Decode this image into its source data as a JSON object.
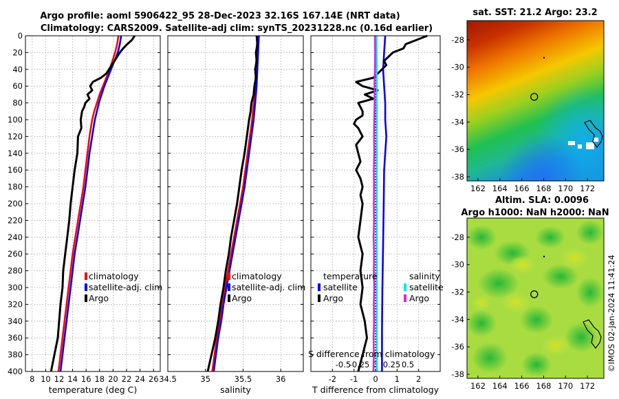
{
  "header": {
    "title_line1": "Argo profile: aoml 5906422_95 28-Dec-2023 32.16S 167.14E (NRT data)",
    "title_line2": "Climatology: CARS2009. Satellite-adj clim: synTS_20231228.nc (0.16d earlier)"
  },
  "colors": {
    "climatology": "#ff0000",
    "satellite": "#0000ff",
    "argo": "#000000",
    "s_satellite": "#00e5ee",
    "s_argo": "#e020e0"
  },
  "watermark": "©IMOS 02-Jan-2024 11:41:24",
  "chart_data": [
    {
      "type": "line",
      "name": "temperature",
      "xlabel": "temperature (deg C)",
      "ylabel": "",
      "xlim": [
        7,
        27
      ],
      "ylim": [
        0,
        400
      ],
      "xticks": [
        8,
        10,
        12,
        14,
        16,
        18,
        20,
        22,
        24,
        26
      ],
      "yticks": [
        0,
        20,
        40,
        60,
        80,
        100,
        120,
        140,
        160,
        180,
        200,
        220,
        240,
        260,
        280,
        300,
        320,
        340,
        360,
        380,
        400
      ],
      "legend": [
        "climatology",
        "satellite-adj. clim",
        "Argo"
      ],
      "series": [
        {
          "name": "climatology",
          "color": "#ff0000",
          "depth": [
            0,
            10,
            20,
            30,
            40,
            50,
            60,
            70,
            80,
            90,
            100,
            120,
            140,
            160,
            180,
            200,
            220,
            240,
            260,
            280,
            300,
            320,
            340,
            360,
            380,
            400
          ],
          "values": [
            20.8,
            20.6,
            20.3,
            19.9,
            19.5,
            19.0,
            18.5,
            18.0,
            17.6,
            17.2,
            16.9,
            16.5,
            16.2,
            15.9,
            15.6,
            15.2,
            14.8,
            14.4,
            14.0,
            13.7,
            13.4,
            13.1,
            12.8,
            12.5,
            12.2,
            11.9
          ]
        },
        {
          "name": "satellite-adj. clim",
          "color": "#0000ff",
          "depth": [
            0,
            10,
            20,
            30,
            40,
            50,
            60,
            70,
            80,
            90,
            100,
            120,
            140,
            160,
            180,
            200,
            220,
            240,
            260,
            280,
            300,
            320,
            340,
            360,
            380,
            400
          ],
          "values": [
            21.2,
            21.0,
            20.7,
            20.2,
            19.7,
            19.2,
            18.7,
            18.3,
            17.9,
            17.6,
            17.3,
            16.9,
            16.5,
            16.2,
            15.9,
            15.5,
            15.1,
            14.7,
            14.3,
            14.0,
            13.7,
            13.4,
            13.1,
            12.8,
            12.5,
            12.2
          ]
        },
        {
          "name": "Argo",
          "color": "#000000",
          "depth": [
            0,
            5,
            10,
            15,
            20,
            25,
            30,
            35,
            40,
            45,
            50,
            55,
            60,
            65,
            70,
            75,
            80,
            85,
            90,
            100,
            110,
            120,
            140,
            160,
            180,
            200,
            220,
            240,
            260,
            280,
            300,
            320,
            340,
            360,
            380,
            400
          ],
          "values": [
            23.2,
            22.8,
            22.1,
            21.5,
            21.0,
            20.6,
            20.2,
            19.8,
            19.4,
            19.0,
            18.2,
            17.0,
            16.6,
            16.9,
            16.2,
            16.5,
            15.9,
            15.7,
            15.4,
            15.2,
            15.3,
            14.8,
            14.7,
            14.3,
            14.0,
            13.7,
            13.5,
            13.2,
            12.9,
            12.6,
            12.5,
            12.2,
            12.0,
            11.8,
            11.3,
            10.8
          ]
        }
      ]
    },
    {
      "type": "line",
      "name": "salinity",
      "xlabel": "salinity",
      "ylabel": "",
      "xlim": [
        34.5,
        36.3
      ],
      "ylim": [
        0,
        400
      ],
      "xticks": [
        34.5,
        35,
        35.5,
        36
      ],
      "legend": [
        "climatology",
        "satellite-adj. clim",
        "Argo"
      ],
      "series": [
        {
          "name": "climatology",
          "color": "#ff0000",
          "depth": [
            0,
            20,
            40,
            60,
            80,
            100,
            120,
            140,
            160,
            180,
            200,
            220,
            240,
            260,
            280,
            300,
            320,
            340,
            360,
            380,
            400
          ],
          "values": [
            35.69,
            35.68,
            35.67,
            35.66,
            35.64,
            35.62,
            35.59,
            35.56,
            35.53,
            35.5,
            35.46,
            35.42,
            35.38,
            35.34,
            35.3,
            35.26,
            35.22,
            35.19,
            35.15,
            35.12,
            35.09
          ]
        },
        {
          "name": "satellite-adj. clim",
          "color": "#0000ff",
          "depth": [
            0,
            20,
            40,
            60,
            80,
            100,
            120,
            140,
            160,
            180,
            200,
            220,
            240,
            260,
            280,
            300,
            320,
            340,
            360,
            380,
            400
          ],
          "values": [
            35.71,
            35.7,
            35.69,
            35.68,
            35.66,
            35.64,
            35.61,
            35.58,
            35.55,
            35.52,
            35.48,
            35.44,
            35.4,
            35.36,
            35.32,
            35.28,
            35.24,
            35.21,
            35.17,
            35.14,
            35.11
          ]
        },
        {
          "name": "Argo",
          "color": "#000000",
          "depth": [
            0,
            10,
            20,
            30,
            40,
            50,
            60,
            70,
            80,
            90,
            100,
            120,
            140,
            160,
            180,
            200,
            220,
            240,
            260,
            280,
            300,
            320,
            340,
            360,
            380,
            400
          ],
          "values": [
            35.68,
            35.69,
            35.67,
            35.68,
            35.66,
            35.67,
            35.65,
            35.64,
            35.61,
            35.6,
            35.58,
            35.55,
            35.52,
            35.48,
            35.45,
            35.42,
            35.38,
            35.34,
            35.31,
            35.27,
            35.24,
            35.2,
            35.17,
            35.13,
            35.08,
            35.03
          ]
        }
      ]
    },
    {
      "type": "line",
      "name": "difference",
      "xlabel": "T difference from climatology",
      "xlabel_top": "S difference from climatology",
      "xlim": [
        -3,
        3
      ],
      "ylim": [
        0,
        400
      ],
      "xticks": [
        -2,
        -1,
        0,
        1,
        2
      ],
      "xtick_labels_top": [
        "-0.5",
        "-0.25",
        "0",
        "0.25",
        "0.5"
      ],
      "xticks_top_scaled": [
        -1.5,
        -0.75,
        0,
        0.75,
        1.5
      ],
      "legend_temperature": {
        "title": "temperature",
        "items": [
          "satellite",
          "Argo"
        ]
      },
      "legend_salinity": {
        "title": "salinity",
        "items": [
          "satellite",
          "Argo"
        ]
      },
      "series": [
        {
          "name": "T satellite",
          "color": "#0000ff",
          "depth": [
            0,
            20,
            40,
            60,
            80,
            100,
            120,
            140,
            160,
            200,
            250,
            300,
            350,
            400
          ],
          "values": [
            0.45,
            0.4,
            0.35,
            0.4,
            0.45,
            0.45,
            0.5,
            0.45,
            0.4,
            0.38,
            0.35,
            0.32,
            0.3,
            0.3
          ]
        },
        {
          "name": "T Argo",
          "color": "#000000",
          "depth": [
            0,
            5,
            10,
            15,
            20,
            25,
            30,
            35,
            40,
            45,
            50,
            55,
            60,
            65,
            70,
            75,
            80,
            85,
            90,
            95,
            100,
            105,
            110,
            120,
            130,
            140,
            150,
            160,
            170,
            180,
            190,
            200,
            220,
            240,
            260,
            280,
            300,
            320,
            340,
            360,
            380,
            400
          ],
          "values": [
            2.4,
            1.9,
            1.4,
            1.3,
            0.8,
            0.6,
            0.4,
            0.5,
            0.3,
            0.1,
            -0.1,
            -0.9,
            -0.6,
            0.1,
            -0.5,
            -0.1,
            -0.8,
            -0.7,
            -0.6,
            -0.6,
            -0.9,
            -1.0,
            -0.8,
            -0.6,
            -0.9,
            -0.8,
            -0.7,
            -0.9,
            -0.7,
            -0.6,
            -0.7,
            -0.6,
            -0.7,
            -0.8,
            -0.6,
            -0.7,
            -0.6,
            -0.7,
            -0.5,
            -0.4,
            -0.6,
            -0.8
          ]
        },
        {
          "name": "S satellite",
          "color": "#00e5ee",
          "depth": [
            0,
            50,
            100,
            150,
            200,
            250,
            300,
            350,
            400
          ],
          "values": [
            0.04,
            0.06,
            0.06,
            0.06,
            0.06,
            0.06,
            0.06,
            0.06,
            0.06
          ]
        },
        {
          "name": "S Argo",
          "color": "#e020e0",
          "depth": [
            0,
            20,
            40,
            60,
            80,
            100,
            120,
            140,
            160,
            180,
            200,
            220,
            240,
            260,
            280,
            300,
            320,
            340,
            360,
            380,
            400
          ],
          "values": [
            -0.03,
            -0.02,
            -0.03,
            -0.05,
            -0.04,
            -0.06,
            -0.07,
            -0.06,
            -0.08,
            -0.07,
            -0.08,
            -0.07,
            -0.09,
            -0.07,
            -0.08,
            -0.06,
            -0.08,
            -0.07,
            -0.09,
            -0.08,
            -0.1
          ]
        }
      ]
    },
    {
      "type": "heatmap",
      "name": "sst_map",
      "title": "sat. SST: 21.2 Argo: 23.2",
      "xticks": [
        162,
        164,
        166,
        168,
        170,
        172
      ],
      "yticks": [
        -28,
        -30,
        -32,
        -34,
        -36,
        -38
      ],
      "xlim": [
        161,
        173.5
      ],
      "ylim": [
        -38.3,
        -26.6
      ],
      "argo_position": {
        "lon": 167.14,
        "lat": -32.16
      }
    },
    {
      "type": "heatmap",
      "name": "sla_map",
      "title": "Altim. SLA: 0.0096",
      "subtitle": "Argo h1000: NaN h2000: NaN",
      "xticks": [
        162,
        164,
        166,
        168,
        170,
        172
      ],
      "yticks": [
        -28,
        -30,
        -32,
        -34,
        -36,
        -38
      ],
      "xlim": [
        161,
        173.5
      ],
      "ylim": [
        -38.3,
        -26.6
      ],
      "argo_position": {
        "lon": 167.14,
        "lat": -32.16
      }
    }
  ]
}
